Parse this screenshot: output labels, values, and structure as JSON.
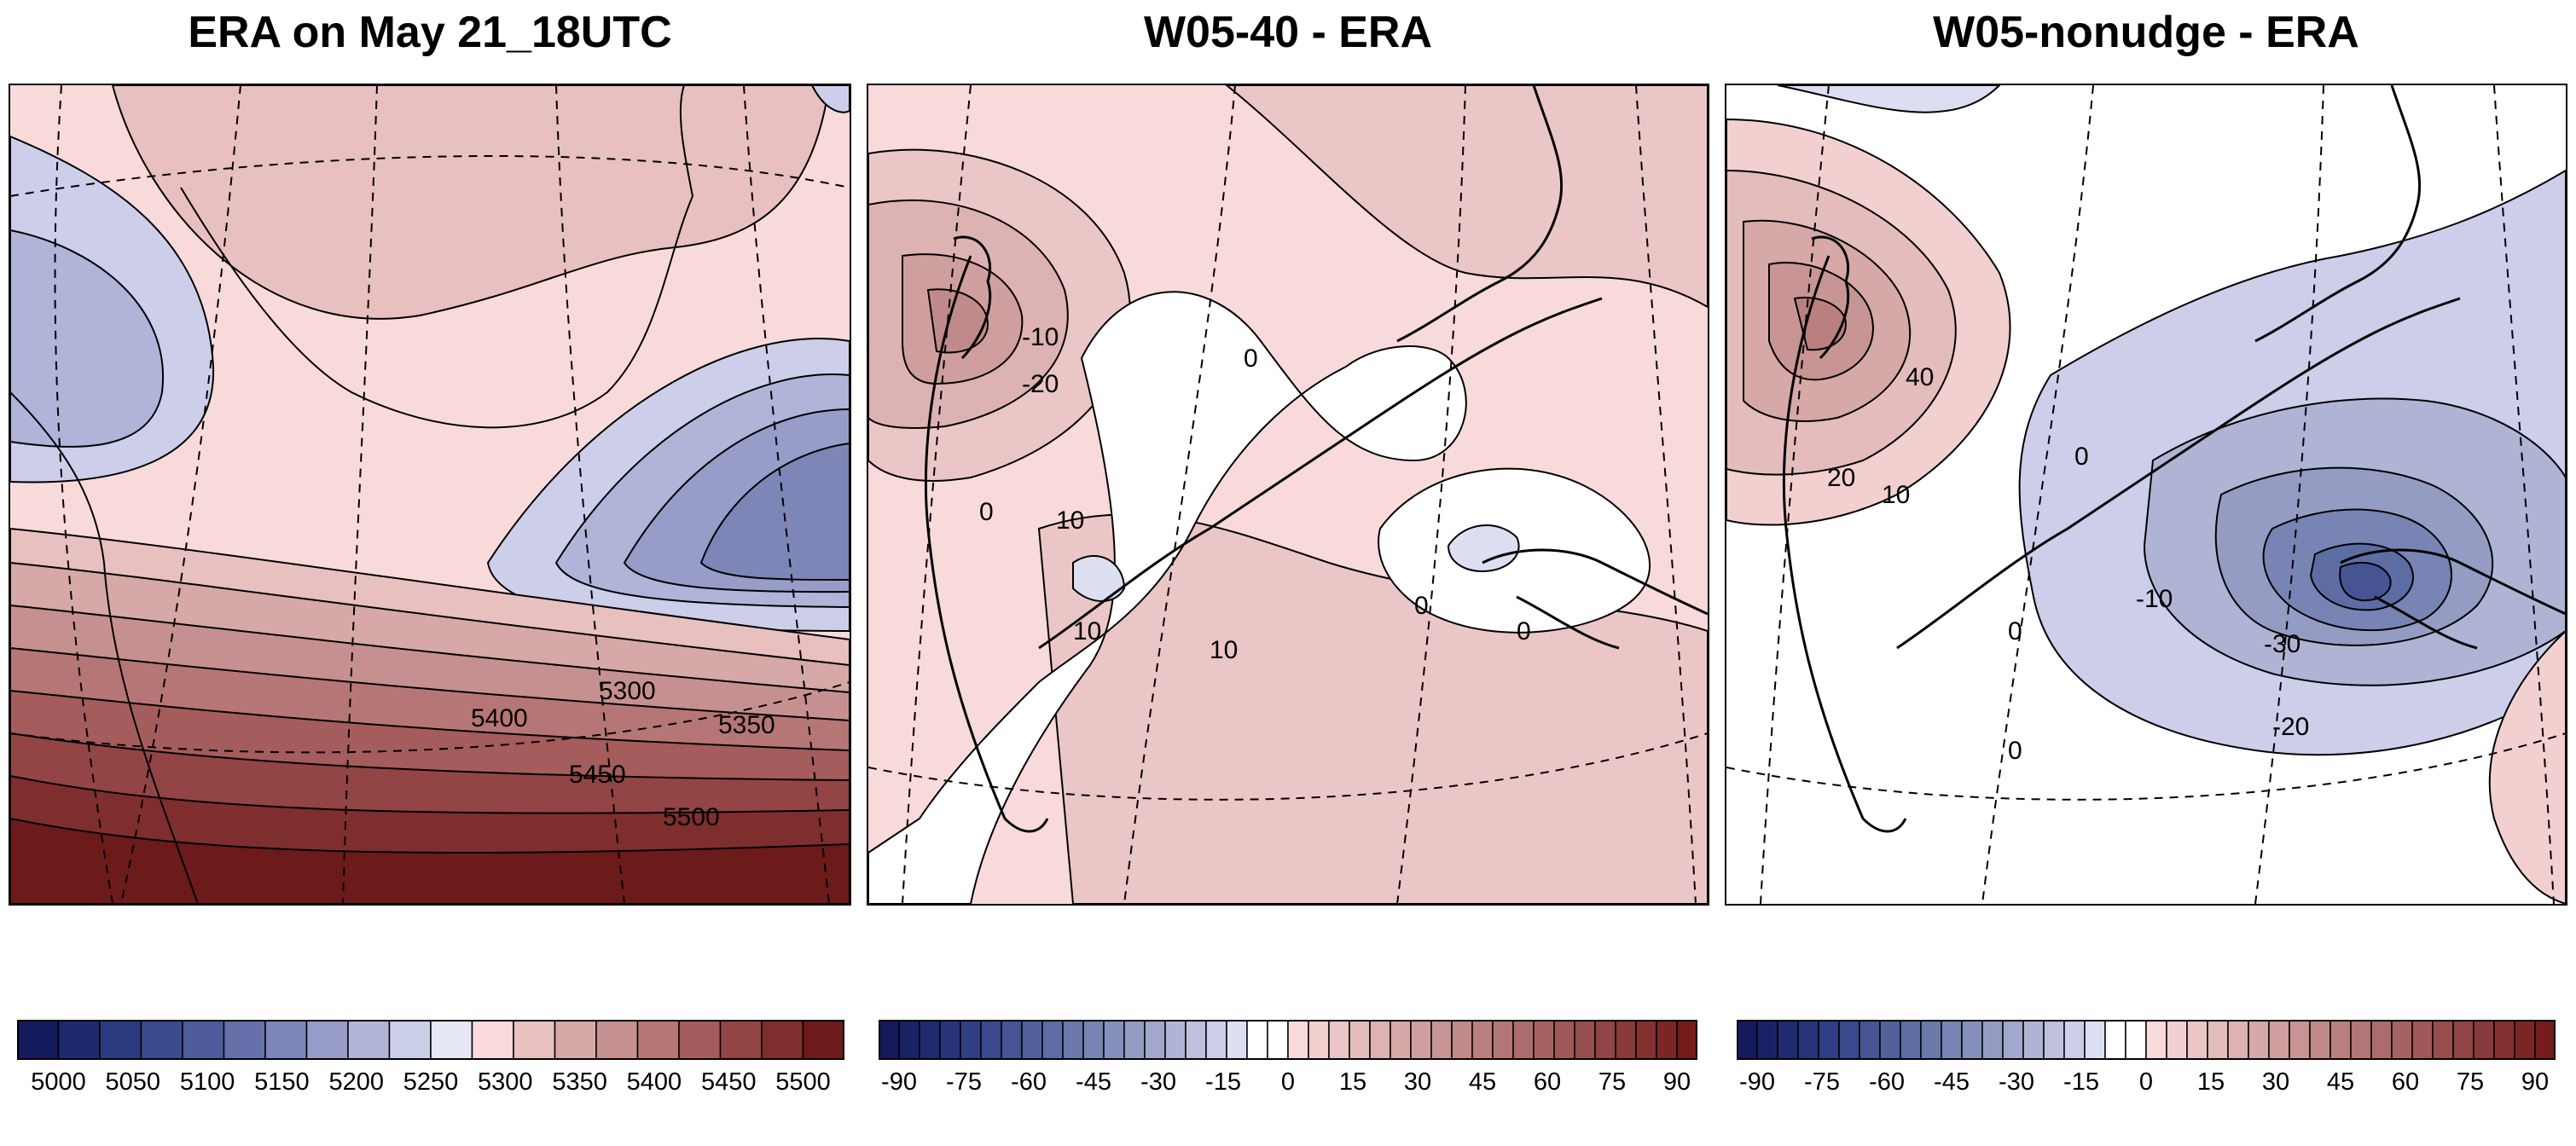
{
  "panels": [
    {
      "title": "ERA on May 21_18UTC",
      "contour_labels": [
        "5300",
        "5350",
        "5400",
        "5450",
        "5500"
      ]
    },
    {
      "title": "W05-40 - ERA",
      "contour_labels": [
        "10",
        "0",
        "0",
        "10",
        "-10",
        "-20",
        "0",
        "10",
        "0"
      ]
    },
    {
      "title": "W05-nonudge - ERA",
      "contour_labels": [
        "40",
        "20",
        "10",
        "0",
        "-10",
        "-30",
        "-20",
        "0",
        "0"
      ]
    }
  ],
  "colorbars": [
    {
      "ticks": [
        "5000",
        "5050",
        "5100",
        "5150",
        "5200",
        "5250",
        "5300",
        "5350",
        "5400",
        "5450",
        "5500"
      ],
      "colors": [
        "#141a5c",
        "#1e2a6e",
        "#2c3a80",
        "#3c4a8e",
        "#4f5c9c",
        "#6670aa",
        "#7e86b8",
        "#979dc8",
        "#b0b4d8",
        "#cccfe8",
        "#e6e8f6",
        "#f9dada",
        "#e8c0c0",
        "#d6a8a8",
        "#c79090",
        "#b77676",
        "#a45c5c",
        "#934444",
        "#7f2e2e",
        "#6c1a1a"
      ]
    },
    {
      "ticks": [
        "-90",
        "-75",
        "-60",
        "-45",
        "-30",
        "-15",
        "0",
        "15",
        "30",
        "45",
        "60",
        "75",
        "90"
      ],
      "colors": [
        "#141a5c",
        "#1a2266",
        "#202a70",
        "#28347a",
        "#303e84",
        "#3a488c",
        "#465494",
        "#52609c",
        "#5e6ca4",
        "#6a78ac",
        "#7884b4",
        "#8690bc",
        "#949cc4",
        "#a2a8cc",
        "#b0b4d4",
        "#bec0dc",
        "#ccceea",
        "#dcdef2",
        "#ffffff",
        "#ffffff",
        "#f9dada",
        "#f2d0d0",
        "#ebc6c6",
        "#e4bcbc",
        "#ddb2b2",
        "#d6a8a8",
        "#cf9e9e",
        "#c89494",
        "#c18a8a",
        "#ba8080",
        "#b37676",
        "#ac6c6c",
        "#a56262",
        "#9e5858",
        "#974e4e",
        "#904444",
        "#893a3a",
        "#823030",
        "#7b2626",
        "#741c1c"
      ]
    },
    {
      "ticks": [
        "-90",
        "-75",
        "-60",
        "-45",
        "-30",
        "-15",
        "0",
        "15",
        "30",
        "45",
        "60",
        "75",
        "90"
      ],
      "colors": [
        "#141a5c",
        "#1a2266",
        "#202a70",
        "#28347a",
        "#303e84",
        "#3a488c",
        "#465494",
        "#52609c",
        "#5e6ca4",
        "#6a78ac",
        "#7884b4",
        "#8690bc",
        "#949cc4",
        "#a2a8cc",
        "#b0b4d4",
        "#bec0dc",
        "#ccceea",
        "#dcdef2",
        "#ffffff",
        "#ffffff",
        "#f9dada",
        "#f2d0d0",
        "#ebc6c6",
        "#e4bcbc",
        "#ddb2b2",
        "#d6a8a8",
        "#cf9e9e",
        "#c89494",
        "#c18a8a",
        "#ba8080",
        "#b37676",
        "#ac6c6c",
        "#a56262",
        "#9e5858",
        "#974e4e",
        "#904444",
        "#893a3a",
        "#823030",
        "#7b2626",
        "#741c1c"
      ]
    }
  ]
}
